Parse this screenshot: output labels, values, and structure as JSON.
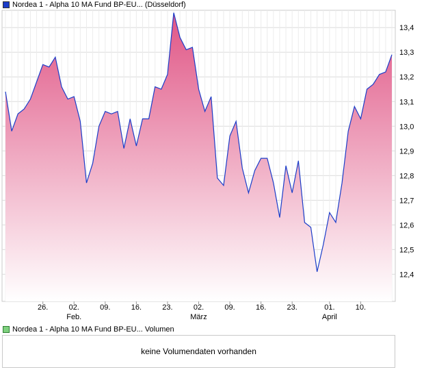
{
  "price_legend": {
    "label": "Nordea 1 - Alpha 10 MA Fund BP-EU... (Düsseldorf)",
    "swatch_color": "#1a3cc8"
  },
  "volume_legend": {
    "label": "Nordea 1 - Alpha 10 MA Fund BP-EU... Volumen",
    "swatch_color": "#7ed07e"
  },
  "volume_panel": {
    "message": "keine Volumendaten vorhanden"
  },
  "chart_data": {
    "type": "area",
    "title": "Nordea 1 - Alpha 10 MA Fund BP-EU... (Düsseldorf)",
    "xlabel": "",
    "ylabel": "",
    "ylim": [
      12.29,
      13.47
    ],
    "y_ticks": [
      "12,4",
      "12,5",
      "12,6",
      "12,7",
      "12,8",
      "12,9",
      "13,0",
      "13,1",
      "13,2",
      "13,3",
      "13,4"
    ],
    "x_tick_labels": [
      {
        "label": "26.",
        "month": "",
        "index": 6
      },
      {
        "label": "02.",
        "month": "Feb.",
        "index": 11
      },
      {
        "label": "09.",
        "month": "",
        "index": 16
      },
      {
        "label": "16.",
        "month": "",
        "index": 21
      },
      {
        "label": "23.",
        "month": "",
        "index": 26
      },
      {
        "label": "02.",
        "month": "März",
        "index": 31
      },
      {
        "label": "09.",
        "month": "",
        "index": 36
      },
      {
        "label": "16.",
        "month": "",
        "index": 41
      },
      {
        "label": "23.",
        "month": "",
        "index": 46
      },
      {
        "label": "01.",
        "month": "April",
        "index": 52
      },
      {
        "label": "10.",
        "month": "",
        "index": 57
      }
    ],
    "series": [
      {
        "name": "Nordea 1 - Alpha 10 MA Fund BP-EU... (Düsseldorf)",
        "color": "#1a3cc8",
        "values": [
          13.14,
          12.98,
          13.05,
          13.07,
          13.11,
          13.18,
          13.25,
          13.24,
          13.28,
          13.16,
          13.11,
          13.12,
          13.02,
          12.77,
          12.85,
          13.0,
          13.06,
          13.05,
          13.06,
          12.91,
          13.03,
          12.92,
          13.03,
          13.03,
          13.16,
          13.15,
          13.21,
          13.46,
          13.36,
          13.31,
          13.32,
          13.15,
          13.06,
          13.12,
          12.79,
          12.76,
          12.96,
          13.02,
          12.83,
          12.73,
          12.82,
          12.87,
          12.87,
          12.77,
          12.63,
          12.84,
          12.73,
          12.86,
          12.61,
          12.59,
          12.41,
          12.52,
          12.65,
          12.61,
          12.77,
          12.98,
          13.08,
          13.03,
          13.15,
          13.17,
          13.21,
          13.22,
          13.29
        ]
      }
    ]
  }
}
